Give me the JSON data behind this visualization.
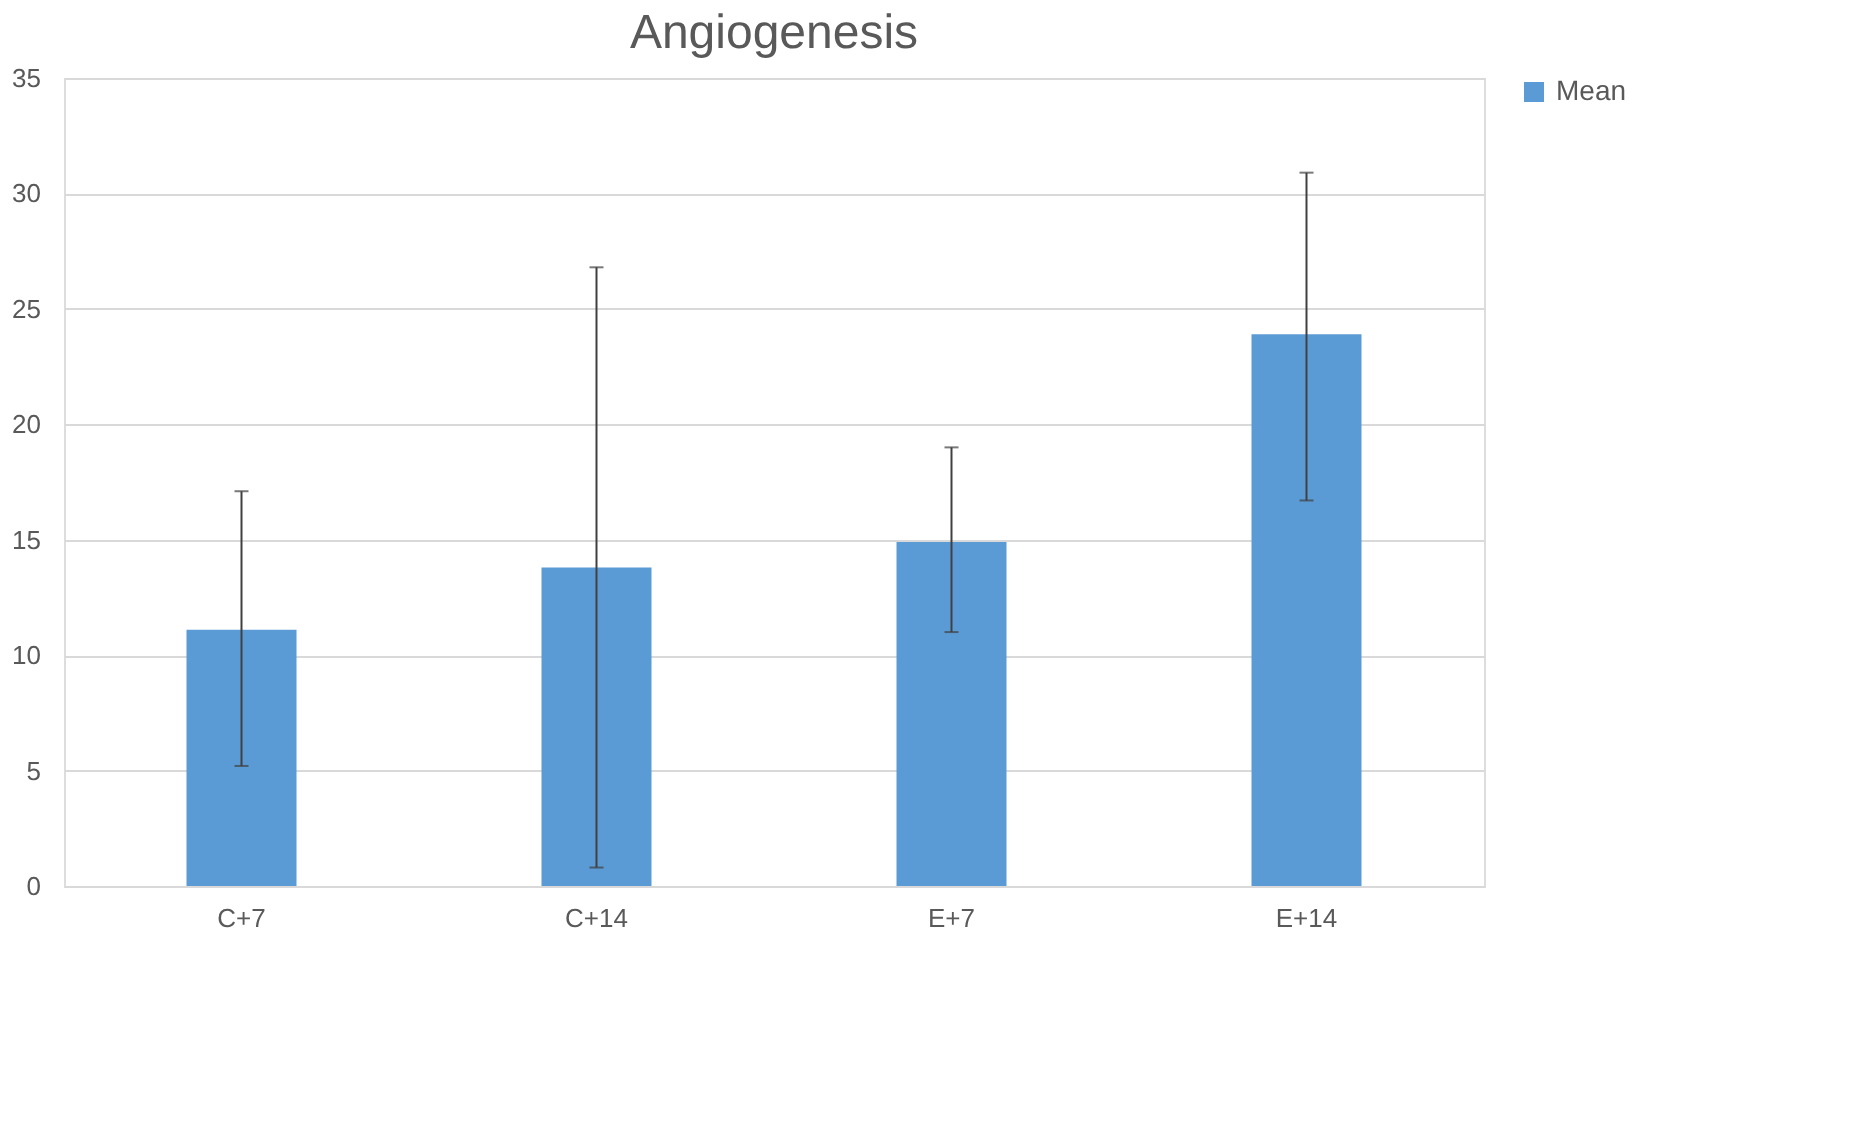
{
  "chart_data": {
    "type": "bar",
    "title": "Angiogenesis",
    "categories": [
      "C+7",
      "C+14",
      "E+7",
      "E+14"
    ],
    "series": [
      {
        "name": "Mean",
        "color": "#5b9bd5",
        "values": [
          11.1,
          13.8,
          14.9,
          23.9
        ],
        "errors": [
          [
            5.2,
            17.1
          ],
          [
            0.8,
            26.8
          ],
          [
            11.0,
            19.0
          ],
          [
            16.7,
            30.9
          ]
        ]
      }
    ],
    "ylim": [
      0,
      35
    ],
    "yticks": [
      0,
      5,
      10,
      15,
      20,
      25,
      30,
      35
    ],
    "grid": "y",
    "legend": "right"
  }
}
